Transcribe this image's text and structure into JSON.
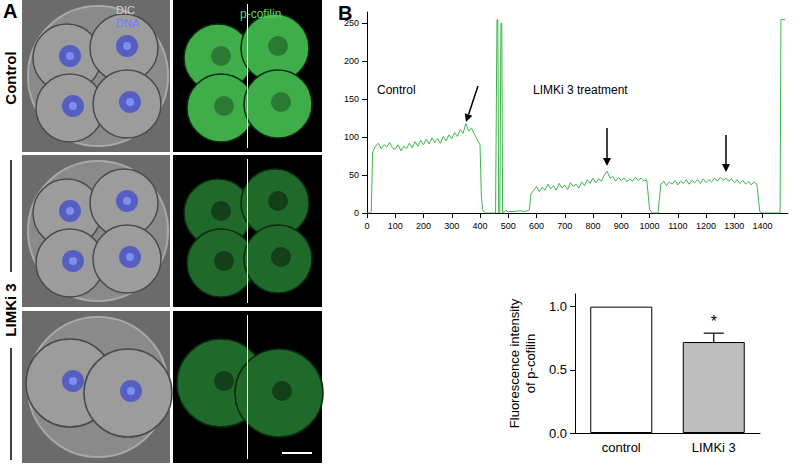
{
  "panel_labels": [
    "A",
    "B"
  ],
  "panel_a": {
    "rows": [
      "Control",
      "LIMKi 3"
    ],
    "channels": [
      "DIC",
      "DNA",
      "p-cofilin"
    ]
  },
  "chart_data": [
    {
      "type": "line",
      "x": [
        0,
        10,
        15,
        20,
        30,
        40,
        50,
        60,
        70,
        80,
        90,
        100,
        110,
        120,
        130,
        140,
        150,
        160,
        170,
        180,
        190,
        200,
        210,
        220,
        230,
        240,
        250,
        260,
        270,
        280,
        290,
        300,
        310,
        320,
        330,
        340,
        350,
        360,
        370,
        380,
        390,
        400,
        405,
        410,
        420,
        440,
        455,
        460,
        463,
        466,
        470,
        474,
        477,
        480,
        490,
        500,
        520,
        540,
        560,
        575,
        580,
        590,
        600,
        610,
        620,
        630,
        640,
        650,
        660,
        670,
        680,
        690,
        700,
        710,
        720,
        730,
        740,
        750,
        760,
        770,
        780,
        790,
        800,
        810,
        820,
        830,
        840,
        850,
        860,
        870,
        880,
        890,
        900,
        910,
        920,
        930,
        940,
        950,
        960,
        970,
        980,
        990,
        1000,
        1010,
        1030,
        1040,
        1050,
        1060,
        1070,
        1080,
        1090,
        1100,
        1110,
        1120,
        1130,
        1140,
        1150,
        1160,
        1170,
        1180,
        1190,
        1200,
        1210,
        1220,
        1230,
        1240,
        1250,
        1260,
        1270,
        1280,
        1290,
        1300,
        1310,
        1320,
        1330,
        1340,
        1350,
        1360,
        1370,
        1380,
        1390,
        1400,
        1420,
        1450,
        1462,
        1465,
        1480
      ],
      "values": [
        0,
        0,
        2,
        80,
        88,
        92,
        85,
        90,
        87,
        93,
        86,
        84,
        90,
        82,
        88,
        85,
        92,
        86,
        94,
        88,
        96,
        90,
        97,
        91,
        99,
        93,
        98,
        92,
        101,
        95,
        103,
        98,
        106,
        101,
        110,
        105,
        118,
        108,
        112,
        104,
        97,
        90,
        20,
        3,
        0,
        0,
        0,
        255,
        255,
        0,
        0,
        250,
        250,
        0,
        3,
        2,
        2,
        3,
        2,
        4,
        25,
        30,
        35,
        28,
        34,
        30,
        38,
        32,
        36,
        30,
        39,
        33,
        37,
        31,
        40,
        35,
        38,
        33,
        41,
        36,
        44,
        39,
        46,
        40,
        45,
        42,
        50,
        55,
        46,
        48,
        42,
        47,
        43,
        46,
        41,
        45,
        42,
        47,
        43,
        46,
        42,
        44,
        5,
        0,
        0,
        38,
        42,
        36,
        41,
        38,
        43,
        37,
        42,
        39,
        44,
        38,
        43,
        40,
        44,
        39,
        45,
        40,
        44,
        41,
        46,
        42,
        47,
        43,
        46,
        42,
        45,
        40,
        44,
        39,
        43,
        38,
        42,
        37,
        41,
        38,
        2,
        0,
        0,
        0,
        0,
        255,
        255
      ],
      "color": "#3db54a",
      "xlim": [
        0,
        1490
      ],
      "xticks": [
        0,
        100,
        200,
        300,
        400,
        500,
        600,
        700,
        800,
        900,
        1000,
        1100,
        1200,
        1300,
        1400
      ],
      "ylim": [
        0,
        265
      ],
      "yticks": [
        0,
        50,
        100,
        150,
        200,
        250
      ],
      "annotations": [
        "Control",
        "LIMKi 3 treatment"
      ],
      "grid": false
    },
    {
      "type": "bar",
      "categories": [
        "control",
        "LIMKi 3"
      ],
      "values": [
        1.0,
        0.72
      ],
      "errors": [
        0,
        0.07
      ],
      "colors": [
        "#ffffff",
        "#bdbdbd"
      ],
      "ylabel": "Fluorescence intensity\nof p-cofilin",
      "ylim": [
        0,
        1.1
      ],
      "yticks": [
        {
          "value": 0,
          "label": "0.0"
        },
        {
          "value": 0.5,
          "label": "0.5"
        },
        {
          "value": 1,
          "label": "1.0"
        }
      ],
      "annotations": [
        {
          "text": "*",
          "category": "LIMKi 3"
        }
      ],
      "grid": false
    }
  ]
}
